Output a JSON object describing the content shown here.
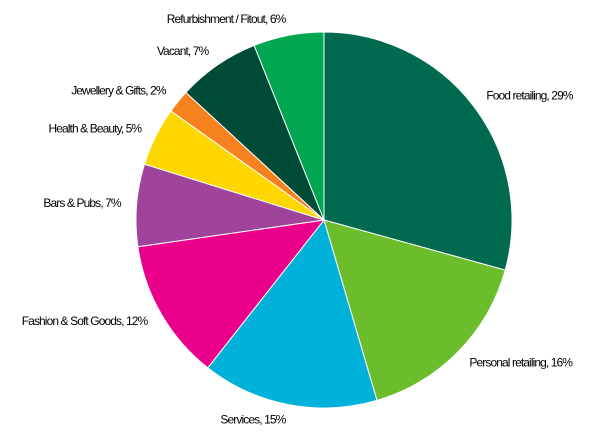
{
  "chart_data": {
    "type": "pie",
    "categories": [
      "Food retailing, 29%",
      "Personal retailing, 16%",
      "Services, 15%",
      "Fashion & Soft Goods, 12%",
      "Bars & Pubs, 7%",
      "Health & Beauty, 5%",
      "Jewellery & Gifts, 2%",
      "Vacant, 7%",
      "Refurbishment / Fitout, 6%"
    ],
    "values": [
      29,
      16,
      15,
      12,
      7,
      5,
      2,
      7,
      6
    ],
    "colors": [
      "#006a4e",
      "#6cbd2c",
      "#00b1da",
      "#ea008b",
      "#a0439a",
      "#ffd700",
      "#f5821f",
      "#004b35",
      "#00a651"
    ]
  }
}
